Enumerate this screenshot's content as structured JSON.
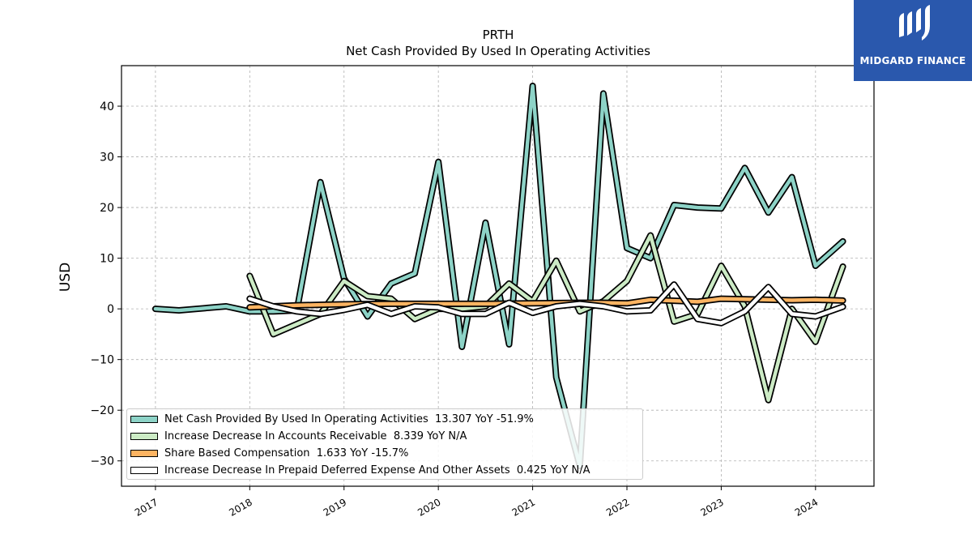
{
  "chart_data": {
    "type": "line",
    "title": "PRTH",
    "subtitle": "Net Cash Provided By Used In Operating Activities",
    "ylabel": "USD",
    "xlabel": "",
    "ylim": [
      -35,
      48
    ],
    "xlim": [
      2016.64,
      2024.62
    ],
    "yticks": [
      -30,
      -20,
      -10,
      0,
      10,
      20,
      30,
      40
    ],
    "xticks": [
      "2017",
      "2018",
      "2019",
      "2020",
      "2021",
      "2022",
      "2023",
      "2024"
    ],
    "grid": true,
    "legend_position": "lower-left",
    "series": [
      {
        "name": "Net Cash Provided By Used In Operating Activities",
        "legend_label": "Net Cash Provided By Used In Operating Activities  13.307 YoY -51.9%",
        "color": "#8dd3c7",
        "points": [
          [
            2017.0,
            0.0
          ],
          [
            2017.25,
            -0.3
          ],
          [
            2017.75,
            0.5
          ],
          [
            2018.0,
            -0.5
          ],
          [
            2018.25,
            -0.5
          ],
          [
            2018.5,
            -0.3
          ],
          [
            2018.75,
            25.0
          ],
          [
            2019.0,
            6.0
          ],
          [
            2019.25,
            -1.5
          ],
          [
            2019.5,
            5.0
          ],
          [
            2019.75,
            7.0
          ],
          [
            2020.0,
            29.0
          ],
          [
            2020.25,
            -7.5
          ],
          [
            2020.5,
            17.0
          ],
          [
            2020.75,
            -7.0
          ],
          [
            2021.0,
            44.0
          ],
          [
            2021.25,
            -13.5
          ],
          [
            2021.5,
            -31.0
          ],
          [
            2021.75,
            42.5
          ],
          [
            2022.0,
            12.0
          ],
          [
            2022.25,
            10.0
          ],
          [
            2022.5,
            20.5
          ],
          [
            2022.75,
            20.0
          ],
          [
            2023.0,
            19.8
          ],
          [
            2023.25,
            27.8
          ],
          [
            2023.5,
            19.0
          ],
          [
            2023.75,
            26.0
          ],
          [
            2024.0,
            8.5
          ],
          [
            2024.29,
            13.307
          ]
        ]
      },
      {
        "name": "Increase Decrease In Accounts Receivable",
        "legend_label": "Increase Decrease In Accounts Receivable  8.339 YoY N/A",
        "color": "#ccebc5",
        "points": [
          [
            2018.0,
            6.5
          ],
          [
            2018.25,
            -5.0
          ],
          [
            2018.75,
            -1.0
          ],
          [
            2019.0,
            5.5
          ],
          [
            2019.25,
            2.5
          ],
          [
            2019.5,
            2.0
          ],
          [
            2019.75,
            -2.0
          ],
          [
            2020.0,
            0.0
          ],
          [
            2020.25,
            0.0
          ],
          [
            2020.5,
            0.5
          ],
          [
            2020.75,
            5.0
          ],
          [
            2021.0,
            1.5
          ],
          [
            2021.25,
            9.5
          ],
          [
            2021.5,
            -0.5
          ],
          [
            2021.75,
            1.5
          ],
          [
            2022.0,
            5.5
          ],
          [
            2022.25,
            14.5
          ],
          [
            2022.5,
            -2.5
          ],
          [
            2022.75,
            -1.0
          ],
          [
            2023.0,
            8.5
          ],
          [
            2023.25,
            0.5
          ],
          [
            2023.5,
            -18.0
          ],
          [
            2023.75,
            0.0
          ],
          [
            2024.0,
            -6.5
          ],
          [
            2024.29,
            8.339
          ]
        ]
      },
      {
        "name": "Share Based Compensation",
        "legend_label": "Share Based Compensation  1.633 YoY -15.7%",
        "color": "#fdb462",
        "points": [
          [
            2018.0,
            0.3
          ],
          [
            2018.25,
            0.5
          ],
          [
            2018.5,
            0.7
          ],
          [
            2018.75,
            0.8
          ],
          [
            2019.0,
            0.9
          ],
          [
            2019.5,
            1.0
          ],
          [
            2020.0,
            1.0
          ],
          [
            2020.5,
            1.0
          ],
          [
            2021.0,
            1.1
          ],
          [
            2021.5,
            1.2
          ],
          [
            2021.75,
            1.2
          ],
          [
            2022.0,
            1.1
          ],
          [
            2022.25,
            1.8
          ],
          [
            2022.5,
            1.6
          ],
          [
            2022.75,
            1.4
          ],
          [
            2023.0,
            2.0
          ],
          [
            2023.25,
            1.9
          ],
          [
            2023.5,
            1.8
          ],
          [
            2023.75,
            1.7
          ],
          [
            2024.0,
            1.8
          ],
          [
            2024.29,
            1.633
          ]
        ]
      },
      {
        "name": "Increase Decrease In Prepaid Deferred Expense And Other Assets",
        "legend_label": "Increase Decrease In Prepaid Deferred Expense And Other Assets  0.425 YoY N/A",
        "color": "#ffffff",
        "points": [
          [
            2018.0,
            2.0
          ],
          [
            2018.25,
            0.5
          ],
          [
            2018.5,
            -0.5
          ],
          [
            2018.75,
            -1.0
          ],
          [
            2019.0,
            -0.2
          ],
          [
            2019.25,
            0.8
          ],
          [
            2019.5,
            -1.0
          ],
          [
            2019.75,
            0.5
          ],
          [
            2020.0,
            0.3
          ],
          [
            2020.25,
            -1.0
          ],
          [
            2020.5,
            -1.0
          ],
          [
            2020.75,
            1.2
          ],
          [
            2021.0,
            -0.8
          ],
          [
            2021.25,
            0.5
          ],
          [
            2021.5,
            1.0
          ],
          [
            2021.75,
            0.5
          ],
          [
            2022.0,
            -0.5
          ],
          [
            2022.25,
            -0.3
          ],
          [
            2022.5,
            4.8
          ],
          [
            2022.75,
            -2.0
          ],
          [
            2023.0,
            -2.8
          ],
          [
            2023.25,
            -0.5
          ],
          [
            2023.5,
            4.3
          ],
          [
            2023.75,
            -1.0
          ],
          [
            2024.0,
            -1.5
          ],
          [
            2024.29,
            0.425
          ]
        ]
      }
    ]
  },
  "logo": {
    "text": "MIDGARD FINANCE",
    "background": "#2a58ad"
  }
}
